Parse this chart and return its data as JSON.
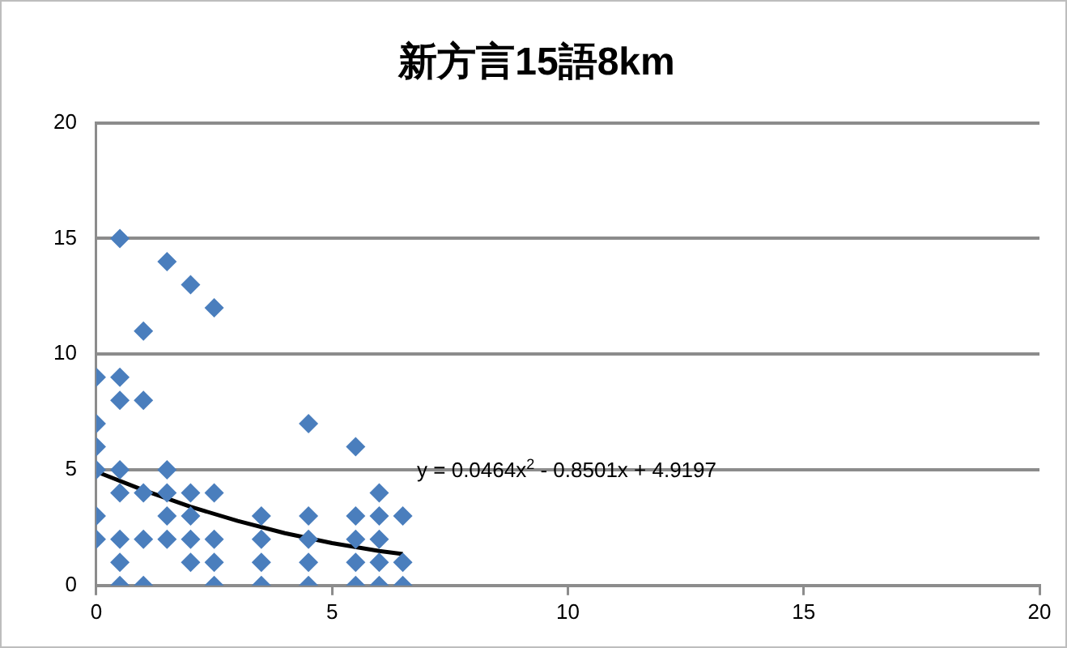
{
  "chart_data": {
    "type": "scatter",
    "title": "新方言15語8km",
    "series": [
      {
        "type": "scatter",
        "color": "#4a7ebd",
        "marker": "diamond",
        "x": [
          0,
          0,
          0,
          0,
          0,
          0,
          0.5,
          0.5,
          0.5,
          0.5,
          0.5,
          0.5,
          0.5,
          0.5,
          1,
          1,
          1,
          1,
          1,
          1.5,
          1.5,
          1.5,
          1.5,
          1.5,
          2,
          2,
          2,
          2,
          2,
          2.5,
          2.5,
          2.5,
          2.5,
          2.5,
          3.5,
          3.5,
          3.5,
          3.5,
          4.5,
          4.5,
          4.5,
          4.5,
          4.5,
          5.5,
          5.5,
          5.5,
          5.5,
          5.5,
          6,
          6,
          6,
          6,
          6,
          6.5,
          6.5,
          6.5
        ],
        "values": [
          9,
          7,
          6,
          5,
          3,
          2,
          15,
          9,
          8,
          5,
          4,
          2,
          1,
          0,
          11,
          8,
          4,
          2,
          0,
          14,
          5,
          4,
          3,
          2,
          13,
          4,
          3,
          2,
          1,
          12,
          4,
          2,
          1,
          0,
          3,
          2,
          1,
          0,
          7,
          3,
          2,
          1,
          0,
          6,
          3,
          2,
          1,
          0,
          4,
          3,
          2,
          1,
          0,
          3,
          1,
          0
        ]
      },
      {
        "type": "line",
        "color": "#000000",
        "marker": "none",
        "line_style": "solid",
        "x": [
          0,
          1,
          2,
          3,
          4,
          5,
          6,
          6.5
        ],
        "values": [
          4.92,
          4.12,
          3.4,
          2.79,
          2.26,
          1.83,
          1.49,
          1.36
        ]
      }
    ],
    "xlim": [
      0,
      20
    ],
    "xticks": [
      0,
      5,
      10,
      15,
      20
    ],
    "ylim": [
      0,
      20
    ],
    "yticks": [
      0,
      5,
      10,
      15,
      20
    ],
    "grid": "y",
    "legend": false,
    "annotations": [
      "y = 0.0464x$^{2}$ - 0.8501x + 4.9197"
    ]
  }
}
